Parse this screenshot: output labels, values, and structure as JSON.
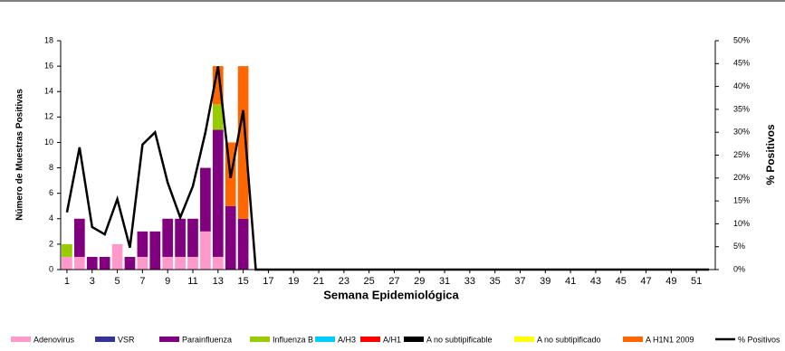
{
  "chart_data": {
    "type": "bar",
    "stacked": true,
    "xlabel": "Semana Epidemiológica",
    "ylabel": "Número de Muestras Positivas",
    "y2label": "% Positivos",
    "x": [
      1,
      2,
      3,
      4,
      5,
      6,
      7,
      8,
      9,
      10,
      11,
      12,
      13,
      14,
      15,
      16,
      17,
      18,
      19,
      20,
      21,
      22,
      23,
      24,
      25,
      26,
      27,
      28,
      29,
      30,
      31,
      32,
      33,
      34,
      35,
      36,
      37,
      38,
      39,
      40,
      41,
      42,
      43,
      44,
      45,
      46,
      47,
      48,
      49,
      50,
      51,
      52
    ],
    "xlim": [
      0.5,
      52.5
    ],
    "xticks": [
      1,
      3,
      5,
      7,
      9,
      11,
      13,
      15,
      17,
      19,
      21,
      23,
      25,
      27,
      29,
      31,
      33,
      35,
      37,
      39,
      41,
      43,
      45,
      47,
      49,
      51
    ],
    "ylim": [
      0,
      18
    ],
    "yticks": [
      0,
      2,
      4,
      6,
      8,
      10,
      12,
      14,
      16,
      18
    ],
    "y2lim": [
      0,
      50
    ],
    "y2ticks": [
      {
        "value": 0,
        "label": "0%"
      },
      {
        "value": 5,
        "label": "5%"
      },
      {
        "value": 10,
        "label": "10%"
      },
      {
        "value": 15,
        "label": "15%"
      },
      {
        "value": 20,
        "label": "20%"
      },
      {
        "value": 25,
        "label": "25%"
      },
      {
        "value": 30,
        "label": "30%"
      },
      {
        "value": 35,
        "label": "35%"
      },
      {
        "value": 40,
        "label": "40%"
      },
      {
        "value": 45,
        "label": "45%"
      },
      {
        "value": 50,
        "label": "50%"
      }
    ],
    "series": [
      {
        "name": "Adenovirus",
        "color": "#ff99cc",
        "values": [
          1,
          1,
          0,
          0,
          2,
          0,
          1,
          0,
          1,
          1,
          1,
          3,
          1,
          0,
          0,
          0,
          0,
          0,
          0,
          0,
          0,
          0,
          0,
          0,
          0,
          0,
          0,
          0,
          0,
          0,
          0,
          0,
          0,
          0,
          0,
          0,
          0,
          0,
          0,
          0,
          0,
          0,
          0,
          0,
          0,
          0,
          0,
          0,
          0,
          0,
          0,
          0
        ]
      },
      {
        "name": "VSR",
        "color": "#333399",
        "values": [
          0,
          0,
          0,
          0,
          0,
          0,
          0,
          0,
          0,
          0,
          0,
          0,
          0,
          0,
          0,
          0,
          0,
          0,
          0,
          0,
          0,
          0,
          0,
          0,
          0,
          0,
          0,
          0,
          0,
          0,
          0,
          0,
          0,
          0,
          0,
          0,
          0,
          0,
          0,
          0,
          0,
          0,
          0,
          0,
          0,
          0,
          0,
          0,
          0,
          0,
          0,
          0
        ]
      },
      {
        "name": "Parainfluenza",
        "color": "#800080",
        "values": [
          0,
          3,
          1,
          1,
          0,
          1,
          2,
          3,
          3,
          3,
          3,
          5,
          10,
          5,
          4,
          0,
          0,
          0,
          0,
          0,
          0,
          0,
          0,
          0,
          0,
          0,
          0,
          0,
          0,
          0,
          0,
          0,
          0,
          0,
          0,
          0,
          0,
          0,
          0,
          0,
          0,
          0,
          0,
          0,
          0,
          0,
          0,
          0,
          0,
          0,
          0,
          0
        ]
      },
      {
        "name": "Influenza  B",
        "color": "#99cc00",
        "values": [
          1,
          0,
          0,
          0,
          0,
          0,
          0,
          0,
          0,
          0,
          0,
          0,
          2,
          0,
          0,
          0,
          0,
          0,
          0,
          0,
          0,
          0,
          0,
          0,
          0,
          0,
          0,
          0,
          0,
          0,
          0,
          0,
          0,
          0,
          0,
          0,
          0,
          0,
          0,
          0,
          0,
          0,
          0,
          0,
          0,
          0,
          0,
          0,
          0,
          0,
          0,
          0
        ]
      },
      {
        "name": "A/H3",
        "color": "#00ccff",
        "values": [
          0,
          0,
          0,
          0,
          0,
          0,
          0,
          0,
          0,
          0,
          0,
          0,
          0,
          0,
          0,
          0,
          0,
          0,
          0,
          0,
          0,
          0,
          0,
          0,
          0,
          0,
          0,
          0,
          0,
          0,
          0,
          0,
          0,
          0,
          0,
          0,
          0,
          0,
          0,
          0,
          0,
          0,
          0,
          0,
          0,
          0,
          0,
          0,
          0,
          0,
          0,
          0
        ]
      },
      {
        "name": "A/H1",
        "color": "#ff0000",
        "values": [
          0,
          0,
          0,
          0,
          0,
          0,
          0,
          0,
          0,
          0,
          0,
          0,
          0,
          0,
          0,
          0,
          0,
          0,
          0,
          0,
          0,
          0,
          0,
          0,
          0,
          0,
          0,
          0,
          0,
          0,
          0,
          0,
          0,
          0,
          0,
          0,
          0,
          0,
          0,
          0,
          0,
          0,
          0,
          0,
          0,
          0,
          0,
          0,
          0,
          0,
          0,
          0
        ]
      },
      {
        "name": "A no subtipificable",
        "color": "#000000",
        "values": [
          0,
          0,
          0,
          0,
          0,
          0,
          0,
          0,
          0,
          0,
          0,
          0,
          0,
          0,
          0,
          0,
          0,
          0,
          0,
          0,
          0,
          0,
          0,
          0,
          0,
          0,
          0,
          0,
          0,
          0,
          0,
          0,
          0,
          0,
          0,
          0,
          0,
          0,
          0,
          0,
          0,
          0,
          0,
          0,
          0,
          0,
          0,
          0,
          0,
          0,
          0,
          0
        ]
      },
      {
        "name": "A no subtipificado",
        "color": "#ffff00",
        "values": [
          0,
          0,
          0,
          0,
          0,
          0,
          0,
          0,
          0,
          0,
          0,
          0,
          0,
          0,
          0,
          0,
          0,
          0,
          0,
          0,
          0,
          0,
          0,
          0,
          0,
          0,
          0,
          0,
          0,
          0,
          0,
          0,
          0,
          0,
          0,
          0,
          0,
          0,
          0,
          0,
          0,
          0,
          0,
          0,
          0,
          0,
          0,
          0,
          0,
          0,
          0,
          0
        ]
      },
      {
        "name": "A H1N1  2009",
        "color": "#ff6600",
        "values": [
          0,
          0,
          0,
          0,
          0,
          0,
          0,
          0,
          0,
          0,
          0,
          0,
          3,
          5,
          12,
          0,
          0,
          0,
          0,
          0,
          0,
          0,
          0,
          0,
          0,
          0,
          0,
          0,
          0,
          0,
          0,
          0,
          0,
          0,
          0,
          0,
          0,
          0,
          0,
          0,
          0,
          0,
          0,
          0,
          0,
          0,
          0,
          0,
          0,
          0,
          0,
          0
        ]
      },
      {
        "name": "% Positivos",
        "color": "#000000",
        "type": "line",
        "axis": "y2",
        "values": [
          12.5,
          26.7,
          9.3,
          7.7,
          15.4,
          4.8,
          27.3,
          30,
          19,
          11.4,
          18.2,
          30,
          44.4,
          20,
          34.8,
          0,
          0,
          0,
          0,
          0,
          0,
          0,
          0,
          0,
          0,
          0,
          0,
          0,
          0,
          0,
          0,
          0,
          0,
          0,
          0,
          0,
          0,
          0,
          0,
          0,
          0,
          0,
          0,
          0,
          0,
          0,
          0,
          0,
          0,
          0,
          0,
          0
        ]
      }
    ]
  }
}
